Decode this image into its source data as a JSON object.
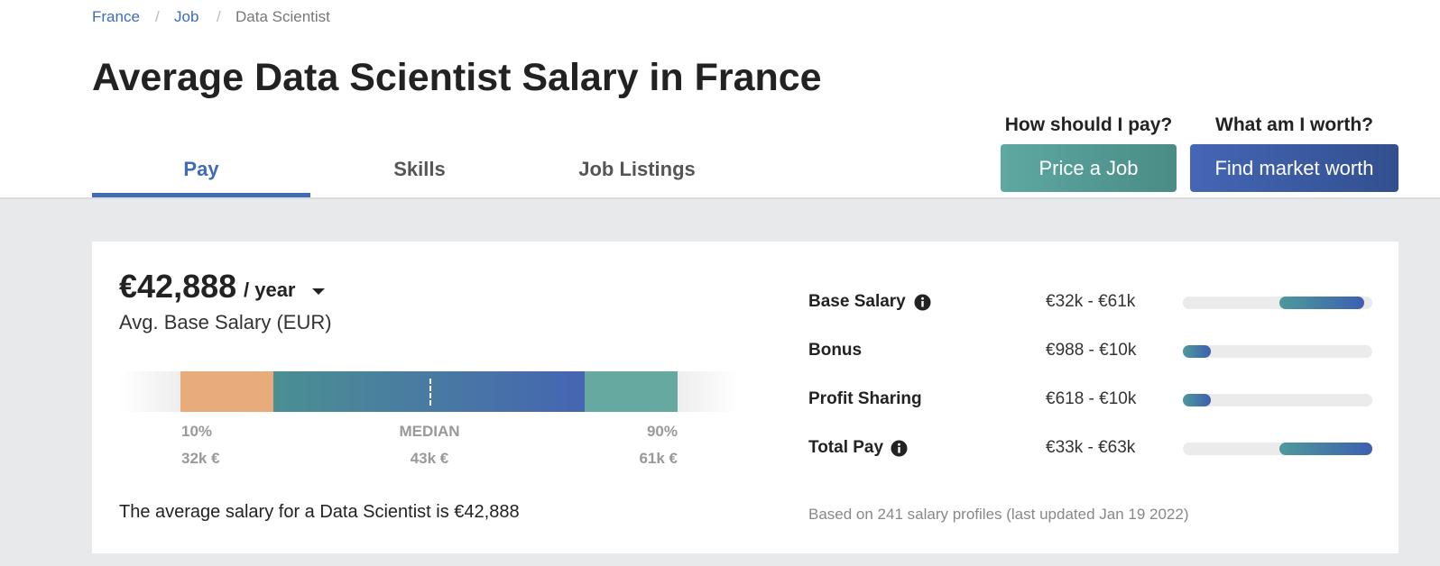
{
  "breadcrumb": [
    "France",
    "Job",
    "Data Scientist"
  ],
  "title": "Average Data Scientist Salary in France",
  "tabs": [
    "Pay",
    "Skills",
    "Job Listings"
  ],
  "cta": [
    {
      "question": "How should I pay?",
      "button": "Price a Job"
    },
    {
      "question": "What am I worth?",
      "button": "Find market worth"
    }
  ],
  "salary": {
    "amount": "€42,888",
    "period": "/ year",
    "label": "Avg. Base Salary (EUR)"
  },
  "percentiles": [
    {
      "label": "10%",
      "value": "32k €"
    },
    {
      "label": "MEDIAN",
      "value": "43k €"
    },
    {
      "label": "90%",
      "value": "61k €"
    }
  ],
  "summary": "The average salary for a Data Scientist is €42,888",
  "breakdown": [
    {
      "name": "Base Salary",
      "range": "€32k - €61k"
    },
    {
      "name": "Bonus",
      "range": "€988 - €10k"
    },
    {
      "name": "Profit Sharing",
      "range": "€618 - €10k"
    },
    {
      "name": "Total Pay",
      "range": "€33k - €63k"
    }
  ],
  "footnote": "Based on 241 salary profiles (last updated Jan 19 2022)"
}
